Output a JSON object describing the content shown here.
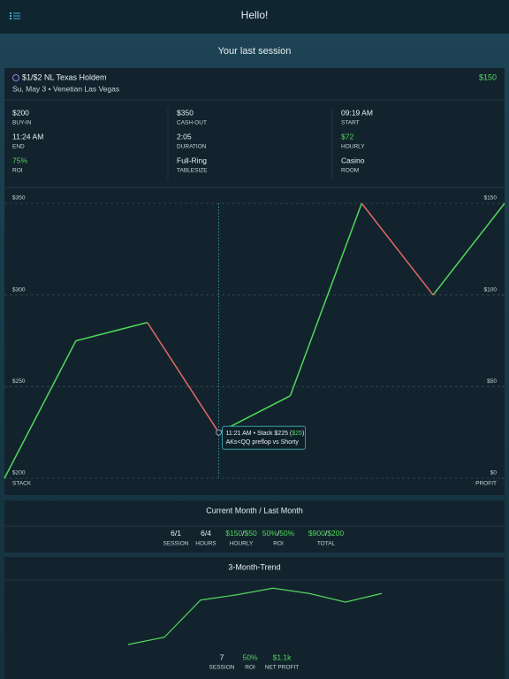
{
  "header": {
    "title": "Hello!"
  },
  "section_title": "Your last session",
  "session": {
    "game": "$1/$2 NL Texas Holdem",
    "profit": "$150",
    "subtitle": "Su, May 3 • Venetian Las Vegas",
    "stats": [
      {
        "value": "$200",
        "label": "BUY-IN"
      },
      {
        "value": "$350",
        "label": "CASH-OUT"
      },
      {
        "value": "09:19 AM",
        "label": "START"
      },
      {
        "value": "11:24 AM",
        "label": "END"
      },
      {
        "value": "2:05",
        "label": "DURATION"
      },
      {
        "value": "$72",
        "label": "HOURLY",
        "highlight": true
      },
      {
        "value": "75%",
        "label": "ROI",
        "highlight": true
      },
      {
        "value": "Full-Ring",
        "label": "TABLESIZE"
      },
      {
        "value": "Casino",
        "label": "ROOM"
      }
    ]
  },
  "chart_data": [
    {
      "type": "line",
      "categories": [
        null,
        null,
        null,
        null,
        null,
        null,
        null,
        null
      ],
      "values": [
        200,
        275,
        285,
        225,
        245,
        350,
        300,
        350
      ],
      "up_color": "#4fd85a",
      "down_color": "#e06a66",
      "ylim": [
        200,
        350
      ],
      "yticks": [
        {
          "value": 200,
          "label": "$200"
        },
        {
          "value": 250,
          "label": "$250"
        },
        {
          "value": 300,
          "label": "$300"
        },
        {
          "value": 350,
          "label": "$350"
        }
      ],
      "y2lim": [
        0,
        150
      ],
      "y2ticks": [
        {
          "value": 0,
          "label": "$0"
        },
        {
          "value": 50,
          "label": "$50"
        },
        {
          "value": 100,
          "label": "$100"
        },
        {
          "value": 150,
          "label": "$150"
        }
      ],
      "ylabel": "STACK",
      "y2label": "PROFIT",
      "grid": true,
      "tooltip": {
        "index": 3,
        "prefix": "11:21 AM • Stack $225 (",
        "profit": "$25",
        "suffix": ")",
        "detail": "AKs<QQ preflop vs Shorty"
      }
    },
    {
      "type": "line",
      "title": "3-Month-Trend",
      "categories": [
        null,
        null,
        null,
        null,
        null,
        null,
        null,
        null
      ],
      "values": [
        8,
        19,
        75,
        83,
        93,
        85,
        72,
        85
      ],
      "ylim": [
        0,
        100
      ],
      "color": "#4fd85a"
    }
  ],
  "monthly": {
    "title": "Current Month / Last Month",
    "separator": "/",
    "items": [
      {
        "current": "6",
        "last": "1",
        "label": "SESSION"
      },
      {
        "current": "6",
        "last": "4",
        "label": "HOURS"
      },
      {
        "current": "$150",
        "last": "$50",
        "label": "HOURLY",
        "highlight": true
      },
      {
        "current": "50%",
        "last": "50%",
        "label": "ROI",
        "highlight": true
      },
      {
        "current": "$900",
        "last": "$200",
        "label": "TOTAL",
        "highlight": true
      }
    ]
  },
  "trend_stats": [
    {
      "value": "7",
      "label": "SESSION"
    },
    {
      "value": "50%",
      "label": "ROI",
      "highlight": true
    },
    {
      "value": "$1.1k",
      "label": "NET PROFIT",
      "highlight": true
    }
  ]
}
